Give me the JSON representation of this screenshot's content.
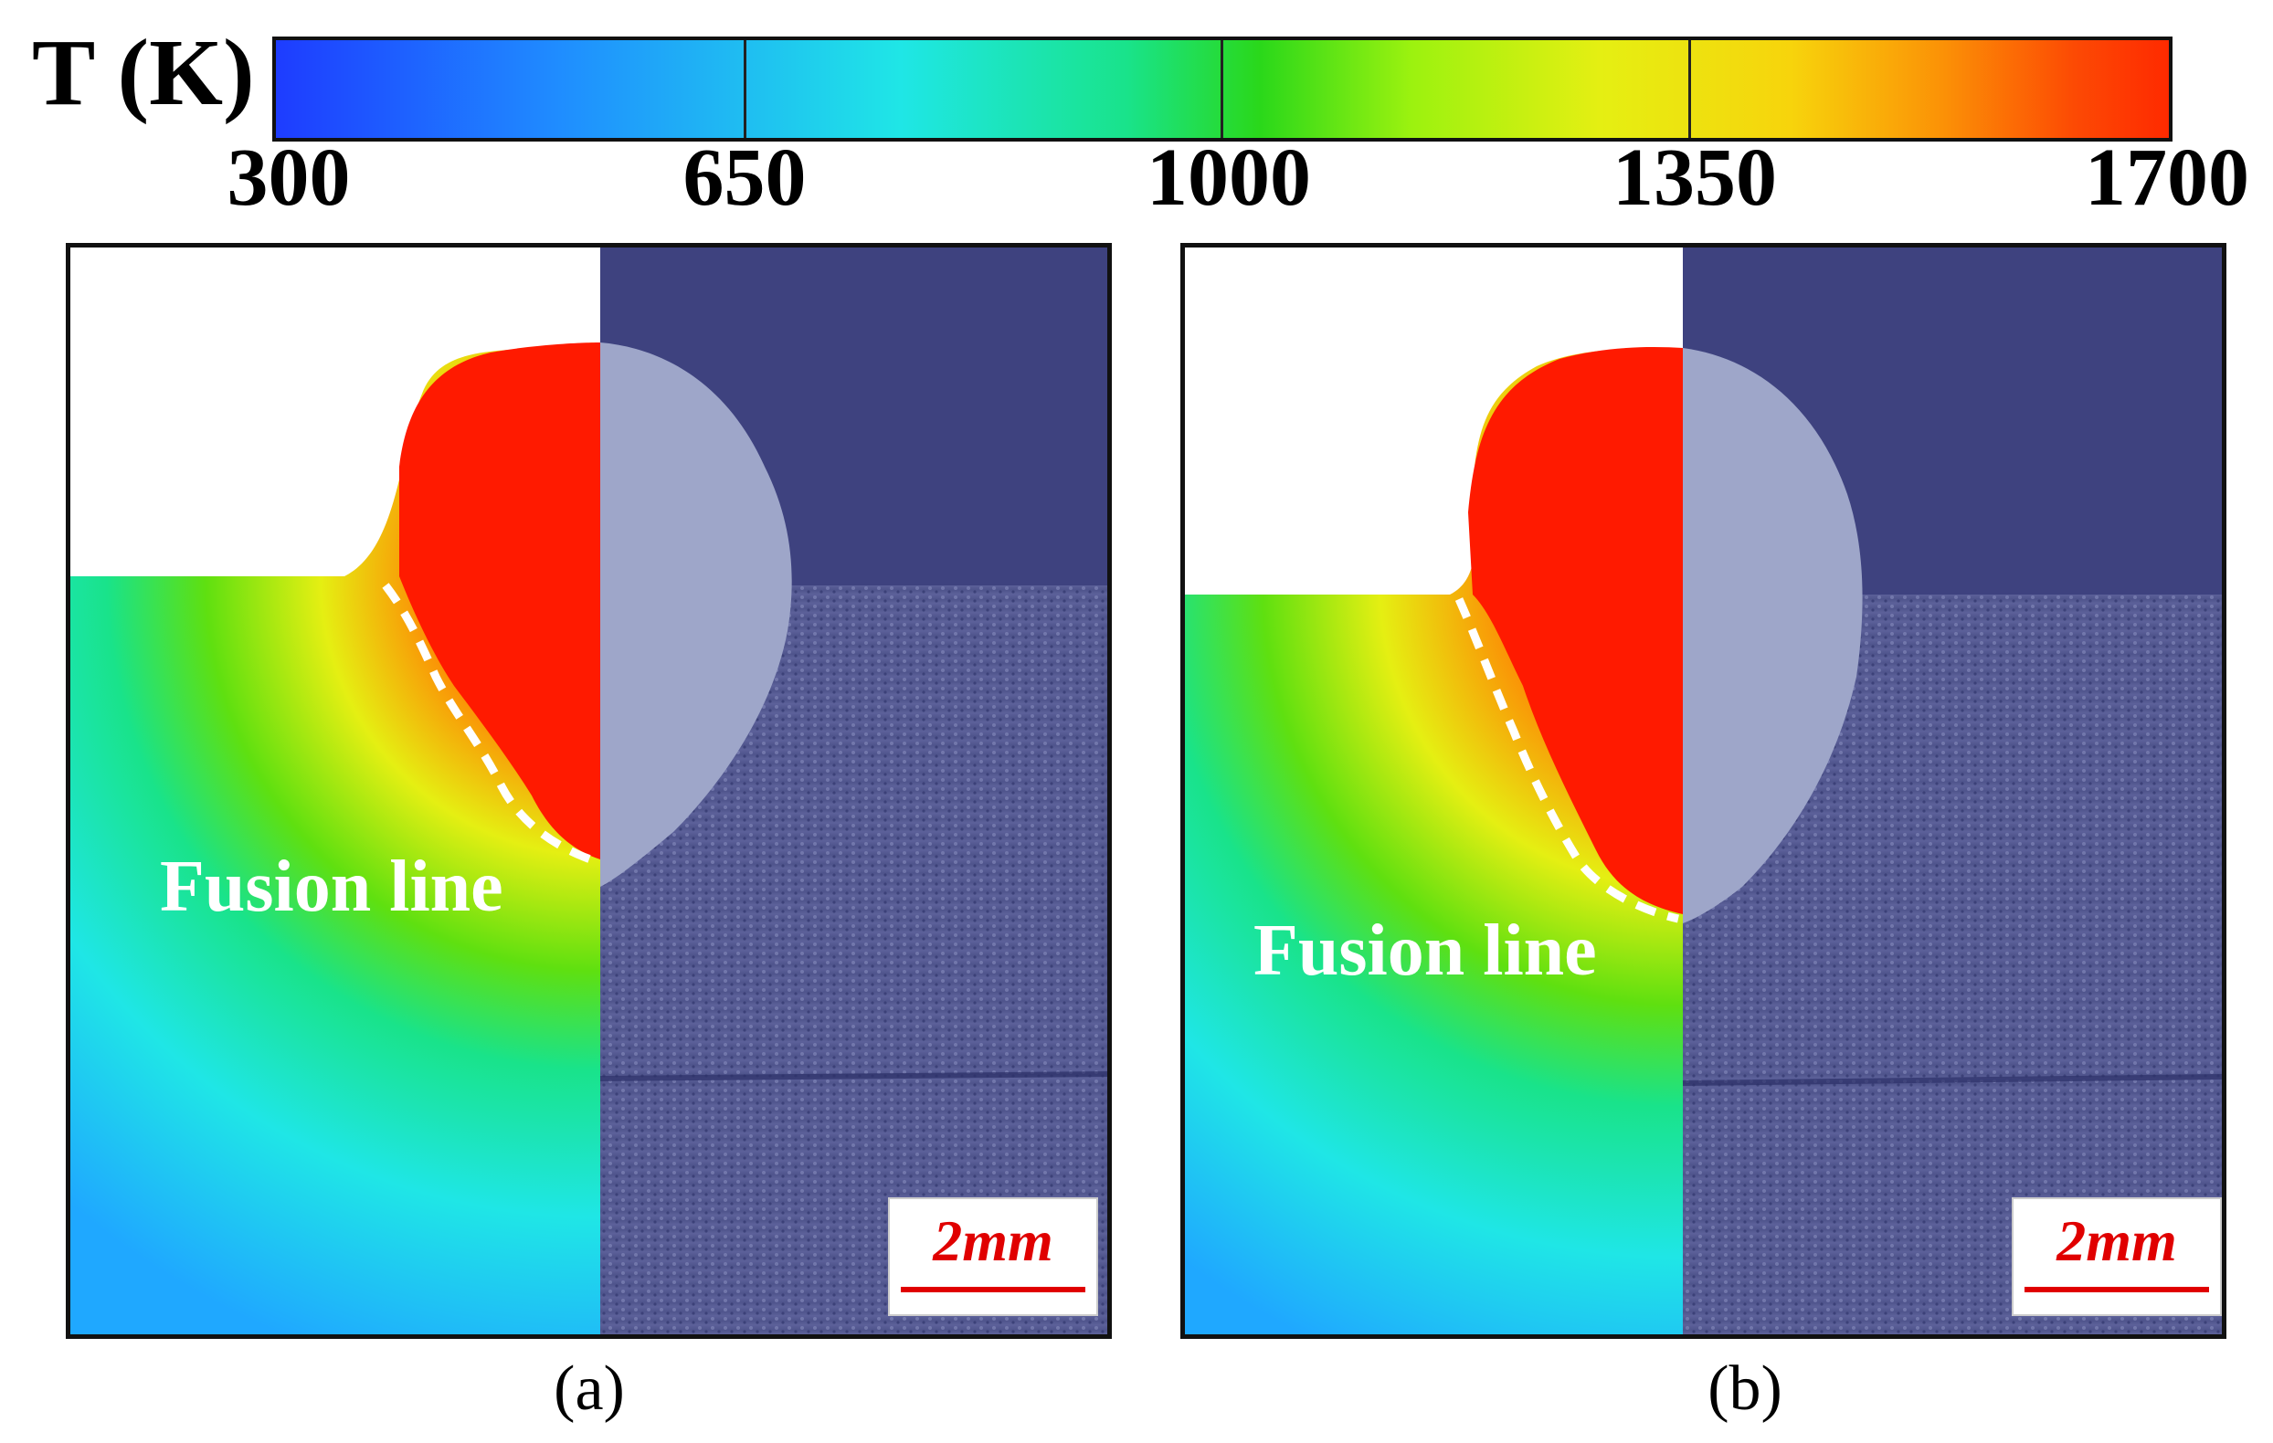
{
  "colorbar": {
    "title": "T (K)",
    "ticks": [
      "300",
      "650",
      "1000",
      "1350",
      "1700"
    ],
    "min": 300,
    "max": 1700,
    "colormap": [
      "#1e3cff",
      "#1fe6e6",
      "#2ad81a",
      "#e5ef12",
      "#ff2a00"
    ]
  },
  "panels": [
    {
      "id": "a",
      "caption": "(a)",
      "fusion_label": "Fusion line",
      "scale_label": "2mm"
    },
    {
      "id": "b",
      "caption": "(b)",
      "fusion_label": "Fusion line",
      "scale_label": "2mm"
    }
  ],
  "colors": {
    "molten_pool": "#ff1a00",
    "micrograph_background": "#3b3f7a",
    "micrograph_base": "#5a5f96",
    "fusion_line": "#ffffff",
    "scale_bar": "#e00000"
  }
}
